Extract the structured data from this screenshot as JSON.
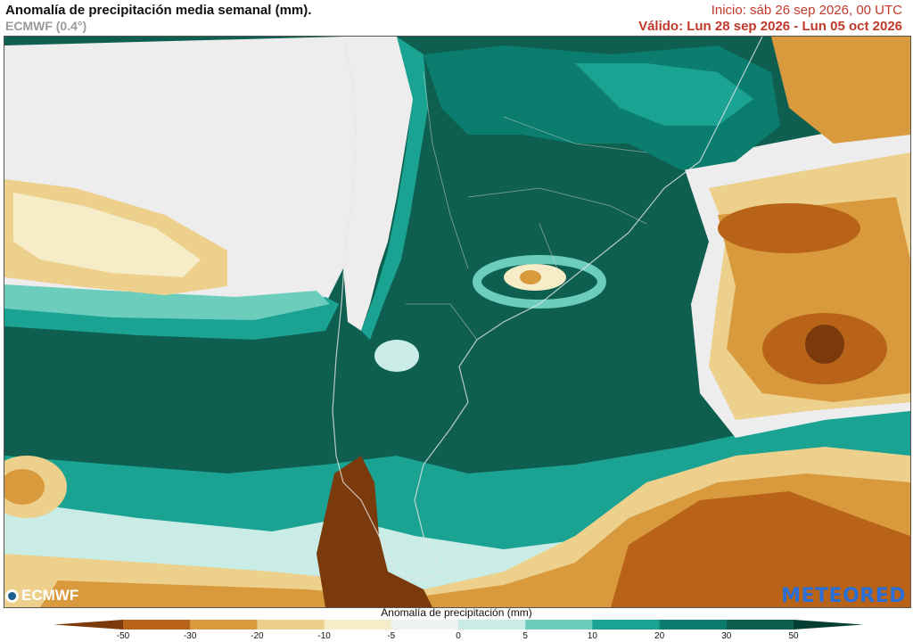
{
  "header": {
    "title": "Anomalía de precipitación media semanal (mm).",
    "model": "ECMWF (0.4°)",
    "init": "Inicio:  sáb 26 sep 2026, 00 UTC",
    "valid": "Válido: Lun 28 sep 2026 - Lun 05 oct 2026"
  },
  "logos": {
    "left": "ECMWF",
    "right": "METEORED"
  },
  "colorbar": {
    "title": "Anomalía de precipitación (mm)",
    "ticks": [
      "-50",
      "-30",
      "-20",
      "-10",
      "-5",
      "0",
      "5",
      "10",
      "20",
      "30",
      "50"
    ],
    "colors": [
      "#7a3a0c",
      "#b86318",
      "#d99a3e",
      "#ecd08c",
      "#f6ecc8",
      "#eef2f2",
      "#c9ece6",
      "#6dcdbd",
      "#1aa293",
      "#0a7d6e",
      "#0e5f50",
      "#053f34"
    ]
  },
  "map": {
    "ocean_negative_colors": [
      "#7a3a0c",
      "#b86318",
      "#d99a3e",
      "#ecd08c"
    ],
    "positive_color": "#0e5f50",
    "neutral_color": "#ededed"
  }
}
